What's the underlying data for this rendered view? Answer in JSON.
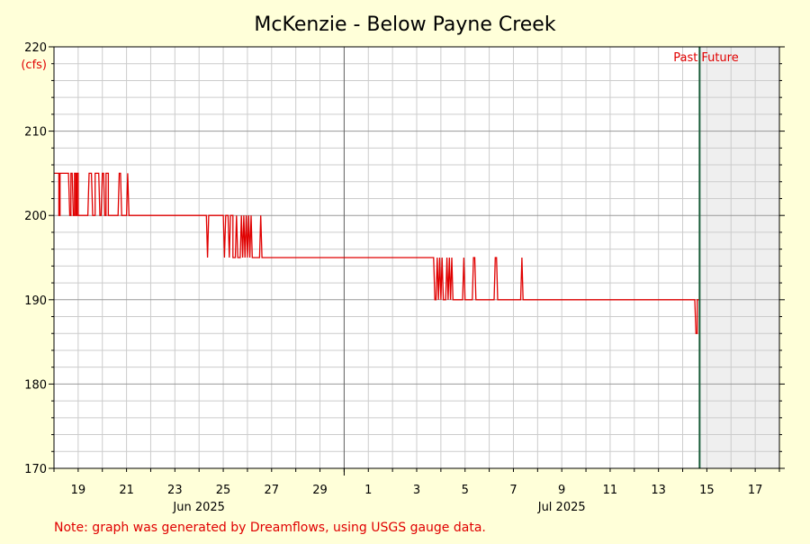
{
  "chart_data": {
    "type": "line",
    "title": "McKenzie - Below Payne Creek",
    "ylabel": "(cfs)",
    "ylim": [
      170,
      220
    ],
    "y_ticks": [
      170,
      180,
      190,
      200,
      210,
      220
    ],
    "x_start_label": "18 Jun 2025",
    "x_range_days": [
      0,
      30
    ],
    "x_ticks": [
      {
        "day": 1,
        "label": "19"
      },
      {
        "day": 3,
        "label": "21"
      },
      {
        "day": 5,
        "label": "23"
      },
      {
        "day": 7,
        "label": "25"
      },
      {
        "day": 9,
        "label": "27"
      },
      {
        "day": 11,
        "label": "29"
      },
      {
        "day": 13,
        "label": "1"
      },
      {
        "day": 15,
        "label": "3"
      },
      {
        "day": 17,
        "label": "5"
      },
      {
        "day": 19,
        "label": "7"
      },
      {
        "day": 21,
        "label": "9"
      },
      {
        "day": 23,
        "label": "11"
      },
      {
        "day": 25,
        "label": "13"
      },
      {
        "day": 27,
        "label": "15"
      },
      {
        "day": 29,
        "label": "17"
      }
    ],
    "month_labels": [
      {
        "day": 6,
        "label": "Jun 2025"
      },
      {
        "day": 21,
        "label": "Jul 2025"
      }
    ],
    "month_boundary_day": 12,
    "now_day": 26.7,
    "past_label": "Past",
    "future_label": "Future",
    "grid": true,
    "series": [
      {
        "color": "#e00000",
        "points": [
          [
            0.0,
            205
          ],
          [
            0.2,
            205
          ],
          [
            0.2,
            200
          ],
          [
            0.25,
            200
          ],
          [
            0.25,
            205
          ],
          [
            0.6,
            205
          ],
          [
            0.65,
            200
          ],
          [
            0.7,
            200
          ],
          [
            0.7,
            205
          ],
          [
            0.75,
            205
          ],
          [
            0.8,
            200
          ],
          [
            0.85,
            200
          ],
          [
            0.85,
            205
          ],
          [
            0.9,
            205
          ],
          [
            0.9,
            200
          ],
          [
            0.95,
            200
          ],
          [
            0.95,
            205
          ],
          [
            1.0,
            205
          ],
          [
            1.0,
            200
          ],
          [
            1.4,
            200
          ],
          [
            1.45,
            205
          ],
          [
            1.55,
            205
          ],
          [
            1.6,
            200
          ],
          [
            1.7,
            200
          ],
          [
            1.7,
            205
          ],
          [
            1.85,
            205
          ],
          [
            1.9,
            200
          ],
          [
            1.95,
            200
          ],
          [
            2.0,
            205
          ],
          [
            2.05,
            205
          ],
          [
            2.1,
            200
          ],
          [
            2.15,
            200
          ],
          [
            2.15,
            205
          ],
          [
            2.25,
            205
          ],
          [
            2.25,
            200
          ],
          [
            2.65,
            200
          ],
          [
            2.7,
            205
          ],
          [
            2.75,
            205
          ],
          [
            2.8,
            200
          ],
          [
            3.0,
            200
          ],
          [
            3.05,
            205
          ],
          [
            3.1,
            200
          ],
          [
            6.3,
            200
          ],
          [
            6.35,
            195
          ],
          [
            6.4,
            200
          ],
          [
            7.0,
            200
          ],
          [
            7.05,
            195
          ],
          [
            7.1,
            200
          ],
          [
            7.2,
            200
          ],
          [
            7.25,
            195
          ],
          [
            7.3,
            200
          ],
          [
            7.4,
            200
          ],
          [
            7.4,
            195
          ],
          [
            7.5,
            195
          ],
          [
            7.55,
            200
          ],
          [
            7.6,
            195
          ],
          [
            7.7,
            195
          ],
          [
            7.75,
            200
          ],
          [
            7.8,
            195
          ],
          [
            7.85,
            200
          ],
          [
            7.9,
            195
          ],
          [
            7.95,
            200
          ],
          [
            8.0,
            195
          ],
          [
            8.05,
            200
          ],
          [
            8.1,
            195
          ],
          [
            8.15,
            200
          ],
          [
            8.2,
            195
          ],
          [
            8.5,
            195
          ],
          [
            8.55,
            200
          ],
          [
            8.6,
            195
          ],
          [
            15.7,
            195
          ],
          [
            15.75,
            190
          ],
          [
            15.8,
            190
          ],
          [
            15.85,
            195
          ],
          [
            15.9,
            190
          ],
          [
            15.95,
            195
          ],
          [
            16.0,
            190
          ],
          [
            16.05,
            195
          ],
          [
            16.1,
            190
          ],
          [
            16.2,
            190
          ],
          [
            16.25,
            195
          ],
          [
            16.3,
            190
          ],
          [
            16.35,
            195
          ],
          [
            16.4,
            190
          ],
          [
            16.45,
            195
          ],
          [
            16.5,
            190
          ],
          [
            16.9,
            190
          ],
          [
            16.95,
            195
          ],
          [
            17.0,
            190
          ],
          [
            17.3,
            190
          ],
          [
            17.35,
            195
          ],
          [
            17.4,
            195
          ],
          [
            17.45,
            190
          ],
          [
            18.2,
            190
          ],
          [
            18.25,
            195
          ],
          [
            18.3,
            195
          ],
          [
            18.35,
            190
          ],
          [
            19.3,
            190
          ],
          [
            19.35,
            195
          ],
          [
            19.4,
            190
          ],
          [
            26.5,
            190
          ],
          [
            26.55,
            186
          ],
          [
            26.6,
            186
          ],
          [
            26.6,
            190
          ],
          [
            26.7,
            190
          ]
        ]
      }
    ]
  },
  "footnote": "Note: graph was generated by Dreamflows, using USGS gauge data.",
  "colors": {
    "background": "#ffffd9",
    "plot_bg": "#ffffff",
    "future_bg": "#efefef",
    "grid_minor": "#cccccc",
    "grid_major": "#999999",
    "month_line": "#666666",
    "now_line": "#1a5e3a",
    "series": "#e00000",
    "label_red": "#e00000"
  }
}
